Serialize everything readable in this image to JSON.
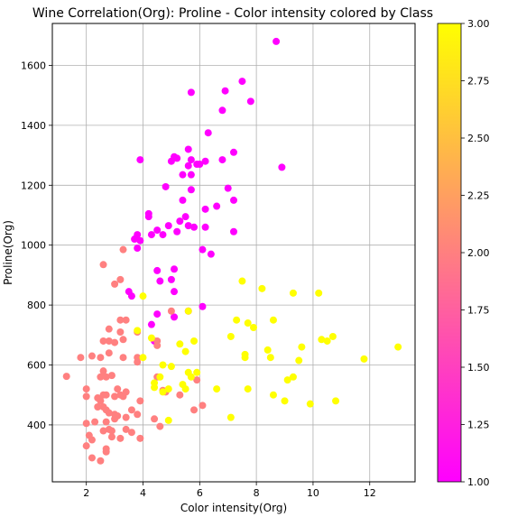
{
  "chart_data": {
    "type": "scatter",
    "title": "Wine Correlation(Org): Proline - Color intensity colored by Class",
    "xlabel": "Color intensity(Org)",
    "ylabel": "Proline(Org)",
    "xlim": [
      0.8,
      13.6
    ],
    "ylim": [
      210,
      1740
    ],
    "xticks": [
      2,
      4,
      6,
      8,
      10,
      12
    ],
    "yticks": [
      400,
      600,
      800,
      1000,
      1200,
      1400,
      1600
    ],
    "grid": true,
    "colormap": {
      "name": "spring",
      "low_color": "#ff00ff",
      "high_color": "#ffff00"
    },
    "colorbar": {
      "range": [
        1.0,
        3.0
      ],
      "ticks": [
        "1.00",
        "1.25",
        "1.50",
        "1.75",
        "2.00",
        "2.25",
        "2.50",
        "2.75",
        "3.00"
      ]
    },
    "series": [
      {
        "class": 1,
        "color": "#ff00ff",
        "points": [
          [
            8.7,
            1680
          ],
          [
            7.5,
            1547
          ],
          [
            6.9,
            1515
          ],
          [
            5.7,
            1510
          ],
          [
            7.8,
            1480
          ],
          [
            6.8,
            1450
          ],
          [
            6.3,
            1375
          ],
          [
            5.6,
            1320
          ],
          [
            7.2,
            1310
          ],
          [
            5.1,
            1295
          ],
          [
            5.2,
            1290
          ],
          [
            5.7,
            1285
          ],
          [
            3.9,
            1285
          ],
          [
            6.2,
            1280
          ],
          [
            5.0,
            1280
          ],
          [
            6.0,
            1270
          ],
          [
            5.6,
            1265
          ],
          [
            8.9,
            1260
          ],
          [
            5.9,
            1270
          ],
          [
            6.8,
            1285
          ],
          [
            5.4,
            1235
          ],
          [
            5.7,
            1235
          ],
          [
            4.8,
            1195
          ],
          [
            7.0,
            1190
          ],
          [
            5.7,
            1185
          ],
          [
            7.2,
            1150
          ],
          [
            5.4,
            1150
          ],
          [
            6.6,
            1130
          ],
          [
            6.2,
            1120
          ],
          [
            4.2,
            1105
          ],
          [
            4.2,
            1095
          ],
          [
            5.5,
            1095
          ],
          [
            5.3,
            1080
          ],
          [
            4.9,
            1065
          ],
          [
            5.8,
            1060
          ],
          [
            6.2,
            1060
          ],
          [
            5.6,
            1065
          ],
          [
            4.5,
            1050
          ],
          [
            5.2,
            1045
          ],
          [
            7.2,
            1045
          ],
          [
            4.3,
            1035
          ],
          [
            4.7,
            1035
          ],
          [
            3.8,
            1035
          ],
          [
            3.7,
            1020
          ],
          [
            3.9,
            1015
          ],
          [
            3.8,
            990
          ],
          [
            6.1,
            985
          ],
          [
            6.4,
            970
          ],
          [
            5.1,
            920
          ],
          [
            4.5,
            915
          ],
          [
            5.0,
            885
          ],
          [
            4.6,
            880
          ],
          [
            3.5,
            845
          ],
          [
            3.6,
            830
          ],
          [
            5.1,
            845
          ],
          [
            6.1,
            795
          ],
          [
            5.6,
            780
          ],
          [
            4.5,
            770
          ],
          [
            5.1,
            760
          ],
          [
            4.3,
            735
          ],
          [
            4.4,
            680
          ]
        ]
      },
      {
        "class": 2,
        "color": "#ff8080",
        "points": [
          [
            2.6,
            935
          ],
          [
            3.2,
            885
          ],
          [
            3.0,
            870
          ],
          [
            3.3,
            985
          ],
          [
            5.0,
            780
          ],
          [
            3.2,
            750
          ],
          [
            3.4,
            750
          ],
          [
            2.8,
            720
          ],
          [
            3.2,
            710
          ],
          [
            3.8,
            710
          ],
          [
            2.6,
            680
          ],
          [
            2.8,
            680
          ],
          [
            3.0,
            675
          ],
          [
            3.3,
            685
          ],
          [
            4.5,
            680
          ],
          [
            4.5,
            665
          ],
          [
            1.8,
            625
          ],
          [
            2.2,
            630
          ],
          [
            2.5,
            625
          ],
          [
            2.8,
            640
          ],
          [
            3.3,
            625
          ],
          [
            3.8,
            625
          ],
          [
            3.8,
            610
          ],
          [
            2.6,
            580
          ],
          [
            2.5,
            560
          ],
          [
            2.6,
            565
          ],
          [
            2.9,
            565
          ],
          [
            4.5,
            560
          ],
          [
            5.9,
            550
          ],
          [
            2.7,
            560
          ],
          [
            3.4,
            510
          ],
          [
            3.1,
            520
          ],
          [
            3.2,
            500
          ],
          [
            2.0,
            520
          ],
          [
            2.0,
            495
          ],
          [
            2.4,
            490
          ],
          [
            2.6,
            500
          ],
          [
            2.7,
            500
          ],
          [
            3.0,
            495
          ],
          [
            3.3,
            495
          ],
          [
            4.7,
            515
          ],
          [
            4.8,
            510
          ],
          [
            5.3,
            500
          ],
          [
            2.5,
            480
          ],
          [
            2.6,
            460
          ],
          [
            2.7,
            450
          ],
          [
            2.8,
            440
          ],
          [
            3.0,
            435
          ],
          [
            3.1,
            430
          ],
          [
            3.6,
            450
          ],
          [
            3.9,
            480
          ],
          [
            2.4,
            460
          ],
          [
            5.8,
            450
          ],
          [
            6.1,
            465
          ],
          [
            1.3,
            562
          ],
          [
            2.0,
            405
          ],
          [
            2.3,
            410
          ],
          [
            2.7,
            410
          ],
          [
            3.0,
            420
          ],
          [
            3.4,
            425
          ],
          [
            3.8,
            435
          ],
          [
            4.4,
            420
          ],
          [
            4.6,
            395
          ],
          [
            2.6,
            380
          ],
          [
            2.8,
            385
          ],
          [
            2.9,
            380
          ],
          [
            3.4,
            385
          ],
          [
            3.6,
            375
          ],
          [
            2.9,
            360
          ],
          [
            3.2,
            355
          ],
          [
            3.9,
            355
          ],
          [
            2.1,
            365
          ],
          [
            2.2,
            350
          ],
          [
            2.0,
            330
          ],
          [
            2.7,
            320
          ],
          [
            2.7,
            310
          ],
          [
            2.2,
            290
          ],
          [
            2.5,
            280
          ]
        ]
      },
      {
        "class": 3,
        "color": "#ffff00",
        "points": [
          [
            7.5,
            880
          ],
          [
            8.2,
            855
          ],
          [
            9.3,
            840
          ],
          [
            10.2,
            840
          ],
          [
            4.0,
            830
          ],
          [
            5.6,
            780
          ],
          [
            8.6,
            750
          ],
          [
            7.3,
            750
          ],
          [
            7.7,
            740
          ],
          [
            7.9,
            725
          ],
          [
            3.8,
            715
          ],
          [
            5.8,
            680
          ],
          [
            7.1,
            695
          ],
          [
            10.3,
            685
          ],
          [
            10.5,
            680
          ],
          [
            10.7,
            695
          ],
          [
            4.3,
            690
          ],
          [
            5.3,
            670
          ],
          [
            9.6,
            660
          ],
          [
            13.0,
            660
          ],
          [
            8.4,
            650
          ],
          [
            7.6,
            635
          ],
          [
            7.6,
            625
          ],
          [
            8.5,
            625
          ],
          [
            9.5,
            615
          ],
          [
            11.8,
            620
          ],
          [
            4.0,
            625
          ],
          [
            5.6,
            575
          ],
          [
            5.9,
            575
          ],
          [
            5.7,
            560
          ],
          [
            9.3,
            560
          ],
          [
            9.1,
            550
          ],
          [
            4.6,
            560
          ],
          [
            5.0,
            595
          ],
          [
            4.7,
            600
          ],
          [
            5.5,
            645
          ],
          [
            5.4,
            535
          ],
          [
            5.5,
            520
          ],
          [
            6.6,
            520
          ],
          [
            7.7,
            520
          ],
          [
            4.9,
            520
          ],
          [
            4.4,
            525
          ],
          [
            4.7,
            510
          ],
          [
            8.6,
            500
          ],
          [
            9.0,
            480
          ],
          [
            9.9,
            470
          ],
          [
            10.8,
            480
          ],
          [
            7.1,
            425
          ],
          [
            4.9,
            415
          ],
          [
            4.4,
            540
          ]
        ]
      }
    ]
  }
}
